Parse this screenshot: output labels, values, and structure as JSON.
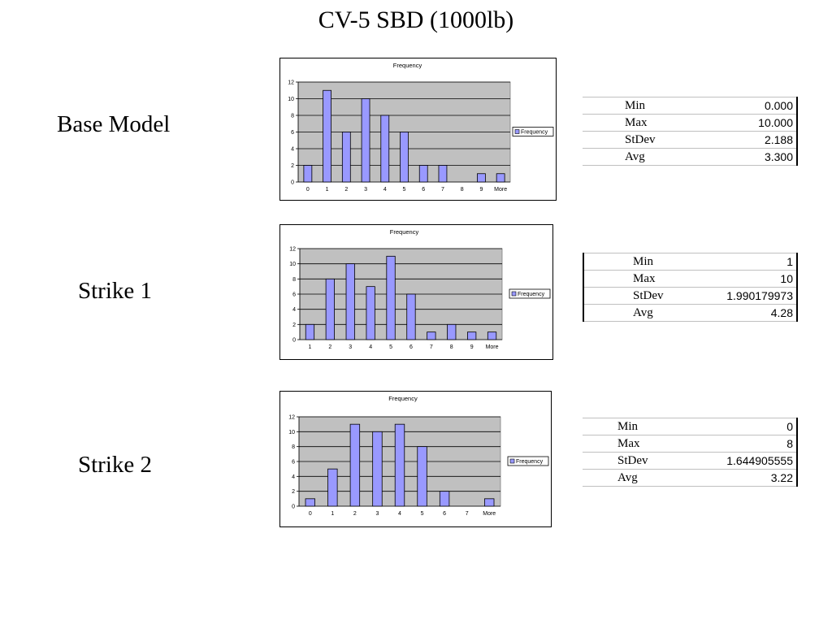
{
  "page": {
    "title": "CV-5 SBD (1000lb)"
  },
  "rows": [
    {
      "label": "Base Model",
      "stats": [
        {
          "k": "Min",
          "v": "0.000"
        },
        {
          "k": "Max",
          "v": "10.000"
        },
        {
          "k": "StDev",
          "v": "2.188"
        },
        {
          "k": "Avg",
          "v": "3.300"
        }
      ]
    },
    {
      "label": "Strike 1",
      "stats": [
        {
          "k": "Min",
          "v": "1"
        },
        {
          "k": "Max",
          "v": "10"
        },
        {
          "k": "StDev",
          "v": "1.990179973"
        },
        {
          "k": "Avg",
          "v": "4.28"
        }
      ]
    },
    {
      "label": "Strike 2",
      "stats": [
        {
          "k": "Min",
          "v": "0"
        },
        {
          "k": "Max",
          "v": "8"
        },
        {
          "k": "StDev",
          "v": "1.644905555"
        },
        {
          "k": "Avg",
          "v": "3.22"
        }
      ]
    }
  ],
  "chart_data": [
    {
      "type": "bar",
      "title": "Frequency",
      "legend": "right",
      "grid": true,
      "categories": [
        "0",
        "1",
        "2",
        "3",
        "4",
        "5",
        "6",
        "7",
        "8",
        "9",
        "More"
      ],
      "series": [
        {
          "name": "Frequency",
          "values": [
            2,
            11,
            6,
            10,
            8,
            6,
            2,
            2,
            0,
            1,
            1
          ]
        }
      ],
      "yticks": [
        "0",
        "2",
        "4",
        "6",
        "8",
        "10",
        "12"
      ],
      "ylim": [
        0,
        12
      ]
    },
    {
      "type": "bar",
      "title": "Frequency",
      "legend": "right",
      "grid": true,
      "categories": [
        "1",
        "2",
        "3",
        "4",
        "5",
        "6",
        "7",
        "8",
        "9",
        "More"
      ],
      "series": [
        {
          "name": "Frequency",
          "values": [
            2,
            8,
            10,
            7,
            11,
            6,
            1,
            2,
            1,
            1
          ]
        }
      ],
      "yticks": [
        "0",
        "2",
        "4",
        "6",
        "8",
        "10",
        "12"
      ],
      "ylim": [
        0,
        12
      ]
    },
    {
      "type": "bar",
      "title": "Frequency",
      "legend": "right",
      "grid": true,
      "categories": [
        "0",
        "1",
        "2",
        "3",
        "4",
        "5",
        "6",
        "7",
        "More"
      ],
      "series": [
        {
          "name": "Frequency",
          "values": [
            1,
            5,
            11,
            10,
            11,
            8,
            2,
            0,
            1
          ]
        }
      ],
      "yticks": [
        "0",
        "2",
        "4",
        "6",
        "8",
        "10",
        "12"
      ],
      "ylim": [
        0,
        12
      ]
    }
  ]
}
